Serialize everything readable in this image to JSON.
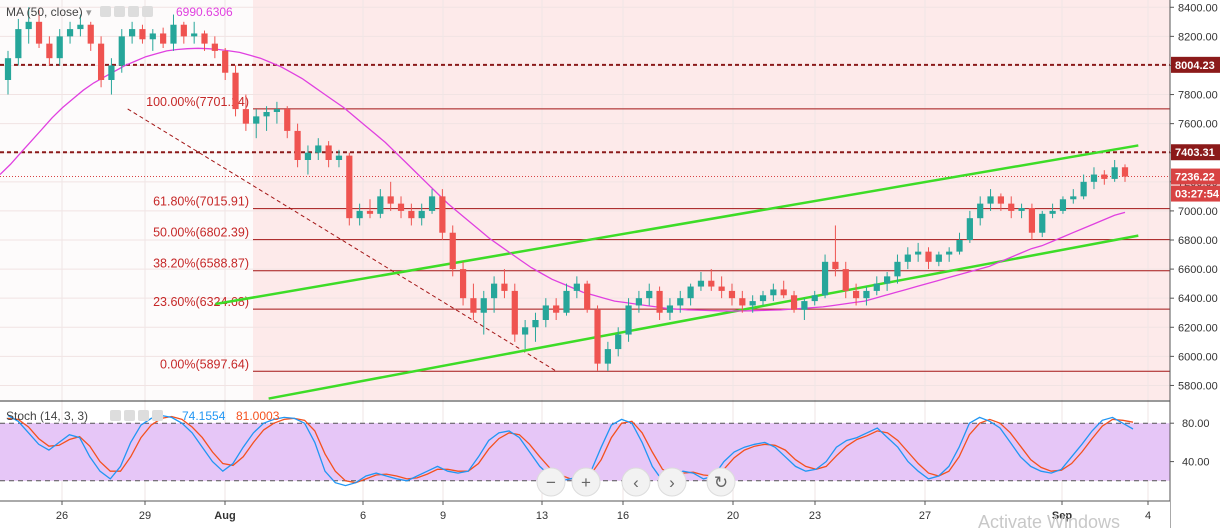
{
  "main_legend": {
    "label": "MA (50, close)",
    "value": "6990.6306",
    "value_color": "#e040e0"
  },
  "stoch_legend": {
    "label": "Stoch (14, 3, 3)",
    "k_value": "74.1554",
    "d_value": "81.0003",
    "k_color": "#2196f3",
    "d_color": "#f4511e"
  },
  "chart_data": [
    {
      "type": "candlestick",
      "y_axis": {
        "min": 5700,
        "max": 8450,
        "ticks": [
          5800,
          6000,
          6200,
          6400,
          6600,
          6800,
          7000,
          7200,
          7400,
          7600,
          7800,
          8000,
          8200,
          8400
        ]
      },
      "x_axis": {
        "tick_labels": [
          "26",
          "29",
          "Aug",
          "6",
          "9",
          "13",
          "16",
          "20",
          "23",
          "27",
          "Sep",
          "4"
        ]
      },
      "price_badges": [
        {
          "value": "8004.23",
          "bg": "#8b1a1a",
          "fg": "#ffffff"
        },
        {
          "value": "7403.31",
          "bg": "#8b1a1a",
          "fg": "#ffffff"
        },
        {
          "value": "7236.22",
          "bg": "#d84343",
          "fg": "#ffffff"
        },
        {
          "value": "03:27:54",
          "bg": "#d84343",
          "fg": "#ffffff"
        }
      ],
      "resistance_levels": [
        8004.23,
        7403.31
      ],
      "last_price": 7236.22,
      "fibonacci": [
        {
          "label": "100.00%(7701.14)",
          "value": 7701.14
        },
        {
          "label": "61.80%(7015.91)",
          "value": 7015.91
        },
        {
          "label": "50.00%(6802.39)",
          "value": 6802.39
        },
        {
          "label": "38.20%(6588.87)",
          "value": 6588.87
        },
        {
          "label": "23.60%(6324.68)",
          "value": 6324.68
        },
        {
          "label": "0.00%(5897.64)",
          "value": 5897.64
        }
      ],
      "channel_upper": [
        [
          6360,
          7.8
        ],
        [
          7450,
          42.5
        ]
      ],
      "channel_lower": [
        [
          5710,
          9.8
        ],
        [
          6830,
          42.5
        ]
      ],
      "retracement_diagonal": [
        [
          7701,
          4.5
        ],
        [
          5900,
          20.6
        ]
      ],
      "candles_ohlc": [
        [
          7900,
          8100,
          7800,
          8050
        ],
        [
          8050,
          8320,
          8000,
          8250
        ],
        [
          8250,
          8400,
          8150,
          8300
        ],
        [
          8300,
          8380,
          8120,
          8150
        ],
        [
          8150,
          8200,
          8000,
          8050
        ],
        [
          8050,
          8250,
          8000,
          8200
        ],
        [
          8200,
          8300,
          8150,
          8250
        ],
        [
          8250,
          8350,
          8200,
          8280
        ],
        [
          8280,
          8300,
          8100,
          8150
        ],
        [
          8150,
          8200,
          7850,
          7900
        ],
        [
          7900,
          8050,
          7800,
          8000
        ],
        [
          8000,
          8250,
          7950,
          8200
        ],
        [
          8200,
          8300,
          8150,
          8250
        ],
        [
          8250,
          8280,
          8150,
          8180
        ],
        [
          8180,
          8250,
          8100,
          8220
        ],
        [
          8220,
          8260,
          8120,
          8150
        ],
        [
          8150,
          8350,
          8100,
          8280
        ],
        [
          8280,
          8300,
          8150,
          8200
        ],
        [
          8200,
          8300,
          8150,
          8220
        ],
        [
          8220,
          8240,
          8100,
          8150
        ],
        [
          8150,
          8200,
          8050,
          8100
        ],
        [
          8100,
          8120,
          7900,
          7950
        ],
        [
          7950,
          8000,
          7650,
          7700
        ],
        [
          7700,
          7800,
          7550,
          7600
        ],
        [
          7600,
          7700,
          7500,
          7650
        ],
        [
          7650,
          7720,
          7550,
          7680
        ],
        [
          7680,
          7750,
          7600,
          7700
        ],
        [
          7700,
          7720,
          7500,
          7550
        ],
        [
          7550,
          7600,
          7300,
          7350
        ],
        [
          7350,
          7450,
          7250,
          7400
        ],
        [
          7400,
          7500,
          7350,
          7450
        ],
        [
          7450,
          7480,
          7300,
          7350
        ],
        [
          7350,
          7420,
          7300,
          7380
        ],
        [
          7380,
          7400,
          6900,
          6950
        ],
        [
          6950,
          7050,
          6900,
          7000
        ],
        [
          7000,
          7080,
          6950,
          6980
        ],
        [
          6980,
          7150,
          6950,
          7100
        ],
        [
          7100,
          7200,
          7000,
          7050
        ],
        [
          7050,
          7100,
          6950,
          7000
        ],
        [
          7000,
          7050,
          6900,
          6950
        ],
        [
          6950,
          7050,
          6900,
          7000
        ],
        [
          7000,
          7150,
          6980,
          7100
        ],
        [
          7100,
          7150,
          6800,
          6850
        ],
        [
          6850,
          6900,
          6550,
          6600
        ],
        [
          6600,
          6650,
          6350,
          6400
        ],
        [
          6400,
          6500,
          6250,
          6300
        ],
        [
          6300,
          6450,
          6150,
          6400
        ],
        [
          6400,
          6550,
          6300,
          6500
        ],
        [
          6500,
          6600,
          6400,
          6450
        ],
        [
          6450,
          6500,
          6100,
          6150
        ],
        [
          6150,
          6250,
          6050,
          6200
        ],
        [
          6200,
          6300,
          6100,
          6250
        ],
        [
          6250,
          6400,
          6200,
          6350
        ],
        [
          6350,
          6400,
          6250,
          6300
        ],
        [
          6300,
          6500,
          6280,
          6450
        ],
        [
          6450,
          6550,
          6400,
          6500
        ],
        [
          6500,
          6520,
          6300,
          6320
        ],
        [
          6320,
          6350,
          5900,
          5950
        ],
        [
          5950,
          6100,
          5900,
          6050
        ],
        [
          6050,
          6200,
          6000,
          6150
        ],
        [
          6150,
          6400,
          6100,
          6350
        ],
        [
          6350,
          6450,
          6300,
          6400
        ],
        [
          6400,
          6500,
          6350,
          6450
        ],
        [
          6450,
          6480,
          6250,
          6300
        ],
        [
          6300,
          6400,
          6250,
          6350
        ],
        [
          6350,
          6450,
          6300,
          6400
        ],
        [
          6400,
          6500,
          6350,
          6480
        ],
        [
          6480,
          6580,
          6450,
          6520
        ],
        [
          6520,
          6600,
          6450,
          6480
        ],
        [
          6480,
          6550,
          6400,
          6450
        ],
        [
          6450,
          6500,
          6350,
          6400
        ],
        [
          6400,
          6450,
          6300,
          6350
        ],
        [
          6350,
          6420,
          6300,
          6380
        ],
        [
          6380,
          6450,
          6350,
          6420
        ],
        [
          6420,
          6500,
          6380,
          6460
        ],
        [
          6460,
          6520,
          6400,
          6420
        ],
        [
          6420,
          6450,
          6300,
          6320
        ],
        [
          6320,
          6400,
          6250,
          6380
        ],
        [
          6380,
          6450,
          6350,
          6420
        ],
        [
          6420,
          6700,
          6400,
          6650
        ],
        [
          6650,
          6900,
          6550,
          6600
        ],
        [
          6600,
          6650,
          6400,
          6450
        ],
        [
          6450,
          6500,
          6350,
          6400
        ],
        [
          6400,
          6480,
          6350,
          6450
        ],
        [
          6450,
          6550,
          6420,
          6500
        ],
        [
          6500,
          6580,
          6450,
          6550
        ],
        [
          6550,
          6700,
          6500,
          6650
        ],
        [
          6650,
          6750,
          6600,
          6700
        ],
        [
          6700,
          6780,
          6650,
          6720
        ],
        [
          6720,
          6750,
          6600,
          6650
        ],
        [
          6650,
          6720,
          6620,
          6700
        ],
        [
          6700,
          6750,
          6650,
          6720
        ],
        [
          6720,
          6850,
          6700,
          6800
        ],
        [
          6800,
          7000,
          6780,
          6950
        ],
        [
          6950,
          7100,
          6900,
          7050
        ],
        [
          7050,
          7150,
          7000,
          7100
        ],
        [
          7100,
          7120,
          7000,
          7050
        ],
        [
          7050,
          7100,
          6950,
          7000
        ],
        [
          7000,
          7050,
          6950,
          7020
        ],
        [
          7020,
          7050,
          6800,
          6850
        ],
        [
          6850,
          7000,
          6820,
          6980
        ],
        [
          6980,
          7050,
          6950,
          7000
        ],
        [
          7000,
          7100,
          6980,
          7080
        ],
        [
          7080,
          7150,
          7050,
          7100
        ],
        [
          7100,
          7250,
          7080,
          7200
        ],
        [
          7200,
          7300,
          7150,
          7250
        ],
        [
          7250,
          7280,
          7180,
          7220
        ],
        [
          7220,
          7350,
          7200,
          7300
        ],
        [
          7300,
          7320,
          7200,
          7236
        ]
      ],
      "ma50": [
        7250,
        7320,
        7400,
        7480,
        7560,
        7640,
        7710,
        7770,
        7830,
        7880,
        7920,
        7960,
        8000,
        8030,
        8060,
        8080,
        8100,
        8110,
        8115,
        8118,
        8115,
        8110,
        8100,
        8090,
        8070,
        8050,
        8020,
        7990,
        7950,
        7910,
        7860,
        7810,
        7760,
        7710,
        7650,
        7590,
        7530,
        7470,
        7400,
        7330,
        7260,
        7190,
        7120,
        7050,
        6990,
        6930,
        6870,
        6810,
        6760,
        6710,
        6660,
        6610,
        6570,
        6530,
        6500,
        6470,
        6440,
        6420,
        6400,
        6380,
        6370,
        6360,
        6350,
        6340,
        6330,
        6325,
        6320,
        6318,
        6315,
        6313,
        6312,
        6312,
        6313,
        6315,
        6318,
        6320,
        6325,
        6330,
        6335,
        6340,
        6350,
        6360,
        6370,
        6380,
        6400,
        6420,
        6440,
        6460,
        6480,
        6500,
        6520,
        6540,
        6560,
        6580,
        6600,
        6620,
        6650,
        6680,
        6710,
        6740,
        6760,
        6790,
        6820,
        6850,
        6880,
        6910,
        6940,
        6970,
        6990
      ]
    },
    {
      "type": "line",
      "name": "Stoch (14, 3, 3)",
      "y_axis": {
        "min": 0,
        "max": 100,
        "ticks": [
          40,
          80
        ]
      },
      "band": [
        20,
        80
      ],
      "k": [
        88,
        82,
        70,
        58,
        52,
        60,
        68,
        65,
        45,
        30,
        22,
        35,
        60,
        78,
        85,
        88,
        86,
        80,
        70,
        55,
        40,
        30,
        38,
        55,
        70,
        80,
        84,
        86,
        85,
        80,
        60,
        30,
        18,
        15,
        18,
        25,
        28,
        25,
        22,
        20,
        25,
        30,
        35,
        30,
        28,
        30,
        45,
        62,
        70,
        72,
        65,
        50,
        35,
        25,
        20,
        22,
        25,
        30,
        55,
        78,
        84,
        80,
        60,
        35,
        20,
        25,
        30,
        28,
        22,
        25,
        40,
        50,
        55,
        58,
        60,
        55,
        45,
        35,
        30,
        32,
        40,
        55,
        62,
        65,
        70,
        75,
        65,
        55,
        40,
        30,
        22,
        25,
        35,
        55,
        80,
        86,
        82,
        75,
        60,
        45,
        35,
        30,
        28,
        32,
        45,
        58,
        72,
        83,
        86,
        80,
        74
      ],
      "d": [
        85,
        84,
        76,
        64,
        56,
        57,
        63,
        66,
        56,
        40,
        30,
        30,
        45,
        65,
        78,
        85,
        87,
        84,
        76,
        65,
        50,
        38,
        36,
        45,
        60,
        73,
        80,
        84,
        85,
        83,
        72,
        48,
        30,
        20,
        18,
        22,
        26,
        27,
        25,
        22,
        23,
        27,
        32,
        32,
        30,
        30,
        38,
        53,
        64,
        70,
        68,
        58,
        45,
        33,
        26,
        22,
        23,
        27,
        42,
        65,
        80,
        82,
        70,
        50,
        32,
        26,
        28,
        29,
        26,
        25,
        32,
        44,
        52,
        56,
        58,
        57,
        52,
        42,
        35,
        32,
        35,
        46,
        56,
        63,
        67,
        72,
        70,
        62,
        50,
        38,
        28,
        25,
        30,
        45,
        68,
        80,
        84,
        80,
        70,
        56,
        42,
        34,
        30,
        31,
        38,
        50,
        64,
        77,
        84,
        83,
        81
      ]
    }
  ],
  "controls": [
    {
      "name": "zoom-out",
      "glyph": "−"
    },
    {
      "name": "zoom-in",
      "glyph": "+"
    },
    {
      "name": "scroll-left",
      "glyph": "‹"
    },
    {
      "name": "scroll-right",
      "glyph": "›"
    },
    {
      "name": "reset",
      "glyph": "↻"
    }
  ],
  "watermark": "Activate Windows"
}
